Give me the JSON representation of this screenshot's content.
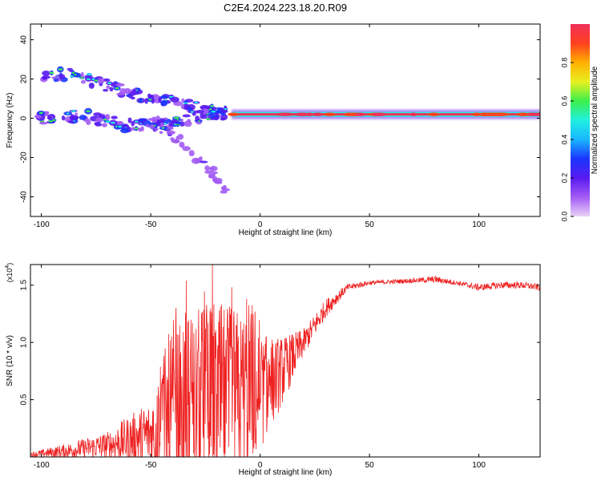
{
  "title": "C2E4.2024.223.18.20.R09",
  "chart_data": [
    {
      "type": "heatmap",
      "xlabel": "Height of straight line (km)",
      "ylabel": "Frequency (Hz)",
      "xlim": [
        -105,
        128
      ],
      "ylim": [
        -50,
        48
      ],
      "x_ticks": [
        -100,
        -50,
        0,
        50,
        100
      ],
      "y_ticks": [
        -40,
        -20,
        0,
        20,
        40
      ],
      "colorbar": {
        "label": "Normalized spectral amplitude",
        "range": [
          0,
          1
        ],
        "ticks": [
          0.0,
          0.2,
          0.4,
          0.6,
          0.8
        ],
        "tick_labels": [
          "0.0",
          "0.2",
          "0.4",
          "0.6",
          "0.8"
        ],
        "colormap": [
          "#e9d2f7",
          "#a35cf5",
          "#5a1af0",
          "#1a36ff",
          "#19b6ff",
          "#20f0e0",
          "#3cf04a",
          "#e8f020",
          "#ffb000",
          "#ff4020",
          "#f0305a"
        ]
      },
      "features": [
        {
          "name": "carrier",
          "x_range": [
            -13,
            128
          ],
          "frequency": 2,
          "amplitude": 0.95
        },
        {
          "name": "upper-branch",
          "x": [
            -100,
            -85,
            -70,
            -55,
            -40,
            -25,
            -15
          ],
          "frequency": [
            22,
            22,
            17,
            12,
            8,
            4,
            2
          ],
          "amplitude": 0.5
        },
        {
          "name": "main-branch",
          "x": [
            -103,
            -80,
            -60,
            -40,
            -20,
            -13
          ],
          "frequency": [
            0,
            1,
            -4,
            -2,
            2,
            2
          ],
          "amplitude": 0.5
        },
        {
          "name": "lower-branch",
          "x": [
            -50,
            -40,
            -30,
            -20,
            -15
          ],
          "frequency": [
            -2,
            -8,
            -18,
            -30,
            -40
          ],
          "amplitude": 0.25
        }
      ]
    },
    {
      "type": "line",
      "xlabel": "Height of straight line (km)",
      "ylabel": "SNR (10 * v/v)",
      "y_multiplier": "(x10",
      "y_multiplier_exp": "4",
      "y_multiplier_close": ")",
      "xlim": [
        -105,
        128
      ],
      "ylim": [
        0,
        1.68
      ],
      "x_ticks": [
        -100,
        -50,
        0,
        50,
        100
      ],
      "y_ticks": [
        0.5,
        1.0,
        1.5
      ],
      "y_tick_labels": [
        "0.5",
        "1.0",
        "1.5"
      ],
      "series": [
        {
          "color": "#ee2222",
          "trend_x": [
            -105,
            -90,
            -70,
            -50,
            -40,
            -30,
            -20,
            -10,
            0,
            10,
            20,
            30,
            40,
            50,
            70,
            80,
            90,
            100,
            110,
            120,
            128
          ],
          "trend_y": [
            0.02,
            0.05,
            0.1,
            0.2,
            0.3,
            0.4,
            0.45,
            0.5,
            0.55,
            0.75,
            1.0,
            1.3,
            1.48,
            1.52,
            1.54,
            1.55,
            1.52,
            1.48,
            1.5,
            1.5,
            1.48
          ],
          "noise_y": [
            0.02,
            0.06,
            0.12,
            0.3,
            0.9,
            0.9,
            0.9,
            0.8,
            0.5,
            0.3,
            0.12,
            0.08,
            0.03,
            0.02,
            0.02,
            0.03,
            0.02,
            0.03,
            0.03,
            0.03,
            0.03
          ]
        }
      ]
    }
  ]
}
